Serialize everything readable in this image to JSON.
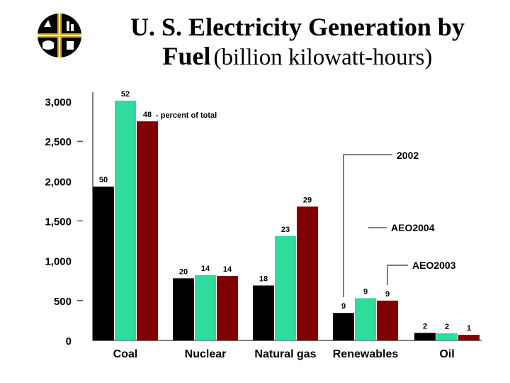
{
  "title": {
    "line1": "U. S. Electricity Generation by",
    "line2_bold": "Fuel",
    "line2_unit": "(billion kilowatt-hours)"
  },
  "logo": {
    "icon": "agency-seal-logo"
  },
  "chart_data": {
    "type": "bar",
    "title": "U. S. Electricity Generation by Fuel (billion kilowatt-hours)",
    "categories": [
      "Coal",
      "Nuclear",
      "Natural gas",
      "Renewables",
      "Oil"
    ],
    "series": [
      {
        "name": "2002",
        "color": "#000000",
        "values": [
          1930,
          780,
          690,
          345,
          95
        ],
        "pct": [
          "50",
          "20",
          "18",
          "9",
          "2"
        ]
      },
      {
        "name": "AEO2004",
        "color": "#2edc9e",
        "values": [
          3010,
          820,
          1310,
          530,
          90
        ],
        "pct": [
          "52",
          "14",
          "23",
          "9",
          "2"
        ]
      },
      {
        "name": "AEO2003",
        "color": "#800000",
        "values": [
          2750,
          810,
          1680,
          500,
          70
        ],
        "pct": [
          "48",
          "14",
          "29",
          "9",
          "1"
        ]
      }
    ],
    "yticks": [
      "0",
      "500",
      "1,000",
      "1,500",
      "2,000",
      "2,500",
      "3,000"
    ],
    "ylim": [
      0,
      3000
    ],
    "annotation": "- percent of total",
    "legend_labels": [
      "2002",
      "AEO2004",
      "AEO2003"
    ]
  }
}
